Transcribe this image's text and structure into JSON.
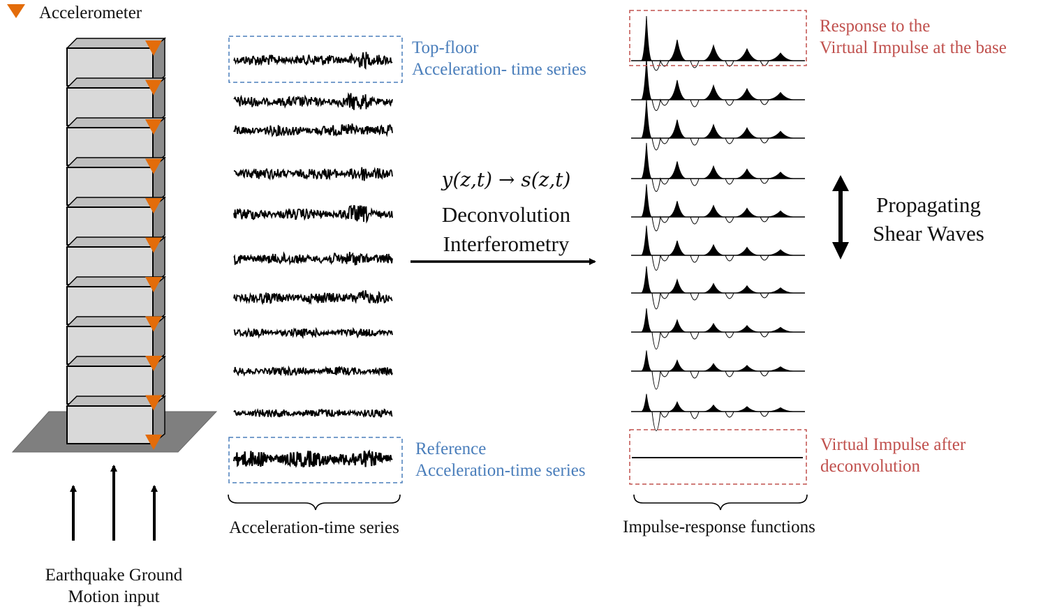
{
  "legend": {
    "label": "Accelerometer",
    "icon": "accelerometer-triangle-icon",
    "color": "#e36c0a"
  },
  "building": {
    "floors": 10,
    "sensors": 11
  },
  "ground_input": {
    "label_line1": "Earthquake Ground",
    "label_line2": "Motion input"
  },
  "acceleration": {
    "top_label_line1": "Top-floor",
    "top_label_line2": "Acceleration- time series",
    "ref_label_line1": "Reference",
    "ref_label_line2": "Acceleration-time  series",
    "brace_label": "Acceleration-time  series",
    "box_color": "#4a7ebb"
  },
  "process": {
    "formula": "y(z,t) → s(z,t)",
    "line1": "Deconvolution",
    "line2": "Interferometry"
  },
  "impulse": {
    "top_label_line1": "Response to the",
    "top_label_line2": "Virtual Impulse at the base",
    "bottom_label_line1": "Virtual Impulse after",
    "bottom_label_line2": "deconvolution",
    "brace_label": "Impulse-response functions",
    "box_color": "#c0504d"
  },
  "waves": {
    "line1": "Propagating",
    "line2": "Shear Waves"
  }
}
